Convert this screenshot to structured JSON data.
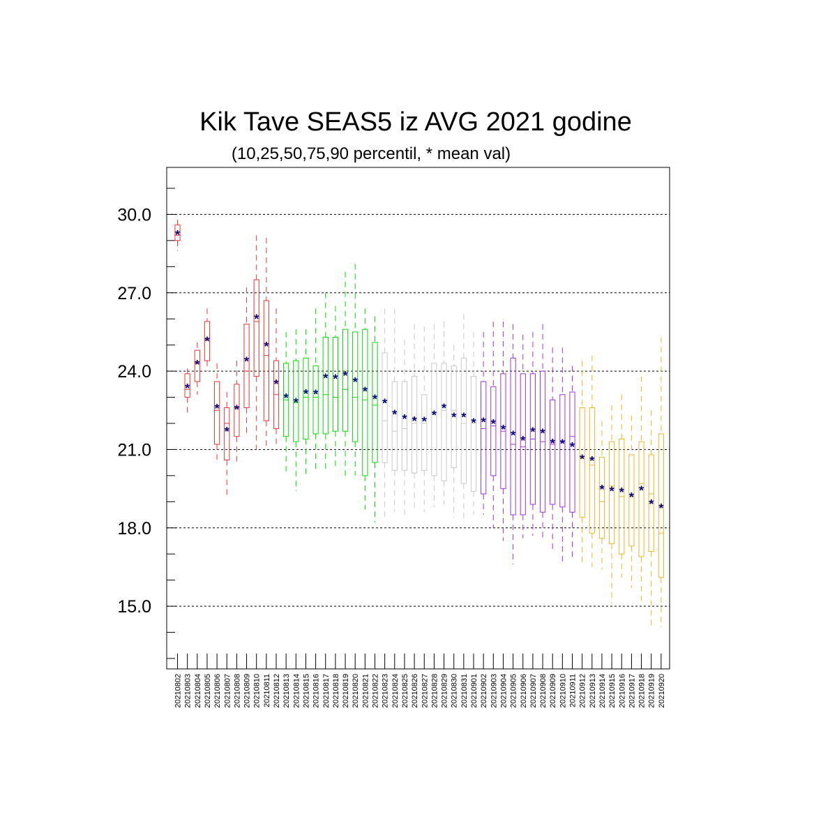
{
  "chart_data": {
    "type": "box",
    "title": "Kik Tave SEAS5 iz AVG 2021 godine",
    "subtitle": "(10,25,50,75,90 percentil, * mean val)",
    "xlabel": "",
    "ylabel": "",
    "ylim": [
      12.6,
      31.8
    ],
    "yticks": [
      "15.0",
      "18.0",
      "21.0",
      "24.0",
      "27.0",
      "30.0"
    ],
    "ytick_values": [
      15,
      18,
      21,
      24,
      27,
      30
    ],
    "grid": "horizontal dashed at major ticks",
    "mean_marker_color": "#00007f",
    "groups": [
      {
        "color": "#f03232",
        "range": [
          0,
          10
        ]
      },
      {
        "color": "#00dc00",
        "range": [
          11,
          20
        ]
      },
      {
        "color": "#c8c8c8",
        "range": [
          21,
          30
        ]
      },
      {
        "color": "#a032e6",
        "range": [
          31,
          40
        ]
      },
      {
        "color": "#f0b428",
        "range": [
          41,
          50
        ]
      }
    ],
    "categories": [
      "20210802",
      "20210803",
      "20210804",
      "20210805",
      "20210806",
      "20210807",
      "20210808",
      "20210809",
      "20210810",
      "20210811",
      "20210812",
      "20210813",
      "20210814",
      "20210815",
      "20210816",
      "20210817",
      "20210818",
      "20210819",
      "20210820",
      "20210821",
      "20210822",
      "20210823",
      "20210824",
      "20210825",
      "20210826",
      "20210827",
      "20210828",
      "20210829",
      "20210830",
      "20210831",
      "20210901",
      "20210902",
      "20210903",
      "20210904",
      "20210905",
      "20210906",
      "20210907",
      "20210908",
      "20210909",
      "20210910",
      "20210911",
      "20210912",
      "20210913",
      "20210914",
      "20210915",
      "20210916",
      "20210917",
      "20210918",
      "20210919",
      "20210920"
    ],
    "p10": [
      28.6,
      22.3,
      23.1,
      24.0,
      20.6,
      19.2,
      20.4,
      21.6,
      21.0,
      21.0,
      21.2,
      20.1,
      19.4,
      20.0,
      20.2,
      20.2,
      20.3,
      19.9,
      20.0,
      18.7,
      18.2,
      18.4,
      18.6,
      18.5,
      18.6,
      18.6,
      18.8,
      18.9,
      18.4,
      18.3,
      18.5,
      18.5,
      18.0,
      17.5,
      16.6,
      17.6,
      17.7,
      17.6,
      17.1,
      16.6,
      16.9,
      16.6,
      16.5,
      16.4,
      15.1,
      16.1,
      15.7,
      15.2,
      14.2,
      14.2
    ],
    "p25": [
      29.0,
      23.0,
      23.6,
      24.4,
      21.2,
      20.6,
      21.5,
      22.6,
      23.8,
      22.1,
      21.8,
      21.5,
      21.3,
      21.4,
      21.6,
      21.6,
      21.7,
      21.7,
      21.3,
      20.0,
      20.5,
      20.5,
      20.2,
      20.2,
      20.1,
      20.2,
      20.0,
      19.8,
      20.3,
      19.7,
      19.4,
      19.3,
      20.0,
      19.5,
      18.5,
      18.5,
      18.9,
      18.6,
      18.9,
      18.8,
      18.6,
      18.4,
      17.8,
      17.6,
      17.4,
      17.0,
      17.3,
      16.9,
      17.1,
      16.1
    ],
    "p50": [
      29.2,
      23.3,
      24.3,
      25.2,
      22.5,
      22.0,
      22.6,
      24.0,
      25.9,
      24.6,
      23.1,
      22.9,
      22.8,
      23.0,
      23.0,
      23.1,
      23.0,
      23.3,
      23.0,
      22.9,
      22.7,
      22.1,
      21.7,
      21.8,
      22.0,
      22.0,
      22.4,
      22.5,
      22.5,
      22.0,
      22.0,
      21.8,
      21.9,
      21.7,
      21.2,
      21.1,
      21.4,
      21.3,
      21.2,
      21.3,
      21.5,
      20.7,
      20.4,
      19.0,
      19.6,
      19.2,
      19.2,
      19.7,
      19.3,
      17.8
    ],
    "p75": [
      29.6,
      23.9,
      24.8,
      25.9,
      23.6,
      22.6,
      23.5,
      25.8,
      27.5,
      26.7,
      24.4,
      24.3,
      24.4,
      24.5,
      24.2,
      25.3,
      25.3,
      25.6,
      25.5,
      25.6,
      25.1,
      24.7,
      23.6,
      23.6,
      23.8,
      23.1,
      24.3,
      24.3,
      24.2,
      24.5,
      23.8,
      23.6,
      23.4,
      23.9,
      24.5,
      23.9,
      23.9,
      24.0,
      22.9,
      23.1,
      23.2,
      22.6,
      22.6,
      20.7,
      21.3,
      21.4,
      20.8,
      21.3,
      20.8,
      21.6
    ],
    "p90": [
      29.8,
      24.1,
      25.1,
      26.4,
      24.3,
      23.2,
      24.4,
      27.2,
      29.2,
      29.1,
      26.4,
      25.5,
      25.6,
      25.6,
      26.4,
      27.0,
      26.5,
      27.8,
      28.1,
      26.4,
      26.1,
      26.4,
      26.4,
      25.2,
      25.8,
      25.7,
      25.8,
      25.9,
      25.0,
      26.2,
      25.5,
      25.5,
      25.9,
      25.9,
      25.8,
      25.4,
      25.5,
      25.8,
      24.9,
      24.9,
      24.2,
      24.4,
      24.6,
      22.1,
      22.7,
      23.1,
      22.3,
      23.8,
      22.5,
      25.3
    ],
    "mean": [
      29.26,
      23.39,
      24.29,
      25.19,
      22.61,
      21.73,
      22.57,
      24.41,
      26.05,
      24.99,
      23.55,
      23.02,
      22.84,
      23.17,
      23.16,
      23.78,
      23.75,
      23.87,
      23.63,
      23.27,
      22.97,
      22.81,
      22.39,
      22.22,
      22.13,
      22.12,
      22.36,
      22.63,
      22.28,
      22.28,
      22.07,
      22.09,
      22.03,
      21.81,
      21.59,
      21.39,
      21.72,
      21.66,
      21.28,
      21.27,
      21.14,
      20.68,
      20.61,
      19.51,
      19.45,
      19.41,
      19.22,
      19.47,
      18.95,
      18.8
    ]
  }
}
